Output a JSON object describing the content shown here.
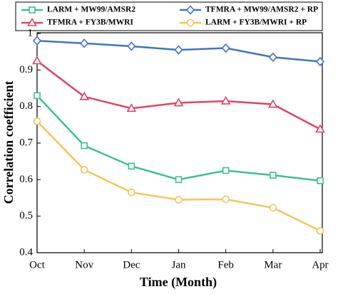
{
  "chart_data": {
    "type": "line",
    "x_label": "Time (Month)",
    "y_label": "Correlation coefficient",
    "categories": [
      "Oct",
      "Nov",
      "Dec",
      "Jan",
      "Feb",
      "Mar",
      "Apr"
    ],
    "series": [
      {
        "name": "LARM + MW99/AMSR2",
        "color": "#3dbf96",
        "marker": "square",
        "values": [
          0.83,
          0.693,
          0.637,
          0.6,
          0.625,
          0.612,
          0.597
        ]
      },
      {
        "name": "TFMRA + MW99/AMSR2 + RP",
        "color": "#4472c4",
        "marker": "diamond",
        "values": [
          0.98,
          0.973,
          0.965,
          0.955,
          0.96,
          0.935,
          0.923
        ]
      },
      {
        "name": "TFMRA + FY3B/MWRI",
        "color": "#e0436b",
        "marker": "triangle",
        "values": [
          0.925,
          0.827,
          0.795,
          0.81,
          0.815,
          0.806,
          0.738
        ]
      },
      {
        "name": "LARM + FY3B/MWRI + RP",
        "color": "#f5c45a",
        "marker": "circle",
        "values": [
          0.76,
          0.627,
          0.565,
          0.545,
          0.546,
          0.523,
          0.46
        ]
      }
    ],
    "ylim": [
      0.4,
      1
    ],
    "yticks": [
      0.4,
      0.5,
      0.6,
      0.7,
      0.8,
      0.9,
      1
    ],
    "grid": false
  }
}
